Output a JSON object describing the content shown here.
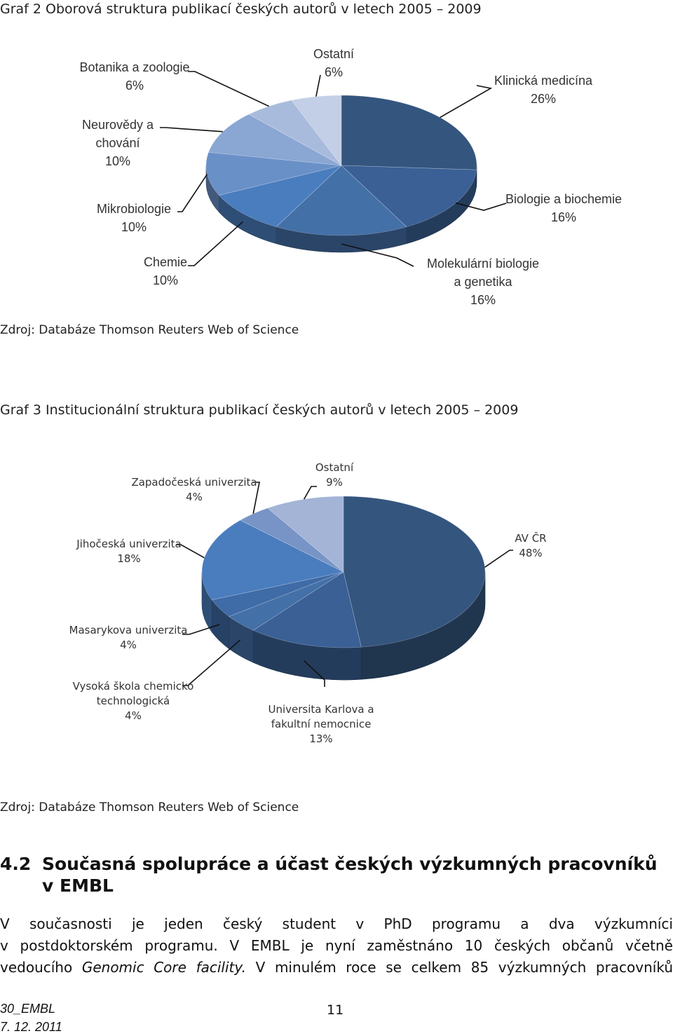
{
  "graph2": {
    "caption": "Graf 2 Oborová struktura publikací českých autorů v letech 2005 – 2009",
    "source": "Zdroj: Databáze Thomson Reuters Web of Science",
    "chart_data": {
      "type": "pie",
      "categories": [
        "Klinická medicína",
        "Biologie a biochemie",
        "Molekulární biologie a genetika",
        "Chemie",
        "Mikrobiologie",
        "Neurovědy a chování",
        "Botanika a zoologie",
        "Ostatní"
      ],
      "values": [
        26,
        16,
        16,
        10,
        10,
        10,
        6,
        6
      ],
      "labels": [
        {
          "name": [
            "Klinická medicína"
          ],
          "pct": "26%"
        },
        {
          "name": [
            "Biologie a biochemie"
          ],
          "pct": "16%"
        },
        {
          "name": [
            "Molekulární biologie",
            "a genetika"
          ],
          "pct": "16%"
        },
        {
          "name": [
            "Chemie"
          ],
          "pct": "10%"
        },
        {
          "name": [
            "Mikrobiologie"
          ],
          "pct": "10%"
        },
        {
          "name": [
            "Neurovědy a",
            "chování"
          ],
          "pct": "10%"
        },
        {
          "name": [
            "Botanika a zoologie"
          ],
          "pct": "6%"
        },
        {
          "name": [
            "Ostatní"
          ],
          "pct": "6%"
        }
      ],
      "colors": [
        "#34557e",
        "#3a6095",
        "#4470a8",
        "#4a7dbe",
        "#6a90c8",
        "#8aa6d2",
        "#a9bbdd",
        "#c3cfe6"
      ],
      "start_at": "12 o'clock, clockwise",
      "style": "3D"
    }
  },
  "graph3": {
    "caption": "Graf 3 Institucionální struktura publikací českých autorů v letech 2005 – 2009",
    "source": "Zdroj: Databáze Thomson Reuters Web of Science",
    "chart_data": {
      "type": "pie",
      "categories": [
        "AV ČR",
        "Universita Karlova a fakultní nemocnice",
        "Vysoká škola chemicko technologická",
        "Masarykova univerzita",
        "Jihočeská univerzita",
        "Zapadočeská univerzita",
        "Ostatní"
      ],
      "values": [
        48,
        13,
        4,
        4,
        18,
        4,
        9
      ],
      "labels": [
        {
          "name": [
            "AV ČR"
          ],
          "pct": "48%"
        },
        {
          "name": [
            "Universita Karlova a",
            "fakultní nemocnice"
          ],
          "pct": "13%"
        },
        {
          "name": [
            "Vysoká škola chemicko",
            "technologická"
          ],
          "pct": "4%"
        },
        {
          "name": [
            "Masarykova univerzita"
          ],
          "pct": "4%"
        },
        {
          "name": [
            "Jihočeská univerzita"
          ],
          "pct": "18%"
        },
        {
          "name": [
            "Zapadočeská univerzita"
          ],
          "pct": "4%"
        },
        {
          "name": [
            "Ostatní"
          ],
          "pct": "9%"
        }
      ],
      "colors": [
        "#34557e",
        "#3a6095",
        "#4470a8",
        "#3f6ba6",
        "#4a7dbe",
        "#7894c6",
        "#a3b4d7"
      ],
      "start_at": "12 o'clock, clockwise",
      "style": "3D"
    }
  },
  "section": {
    "number": "4.2",
    "title_line1": "Současná spolupráce a účast českých výzkumných pracovníků",
    "title_line2": "v EMBL"
  },
  "paragraph": {
    "line1": "V současnosti je jeden český student v PhD programu a dva výzkumníci",
    "line2": "v postdoktorském programu. V EMBL je nyní zaměstnáno 10 českých občanů včetně",
    "line3_before": "vedoucího ",
    "line3_italic": "Genomic Core facility.",
    "line3_after": " V minulém roce se celkem 85 výzkumných pracovníků"
  },
  "footer": {
    "doc_id": "30_EMBL",
    "date": "7. 12. 2011",
    "page_number": "11"
  }
}
